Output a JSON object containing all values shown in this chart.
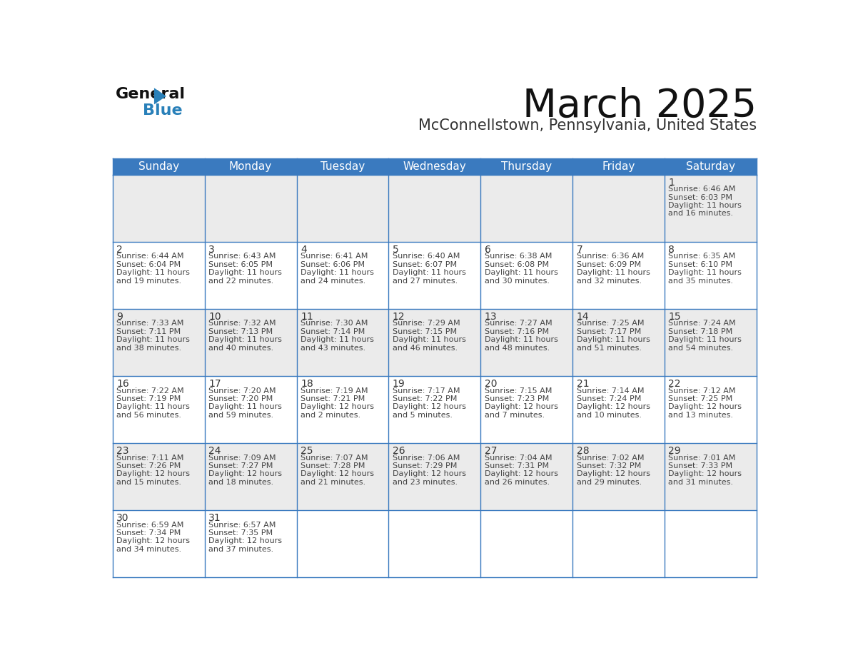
{
  "title": "March 2025",
  "subtitle": "McConnellstown, Pennsylvania, United States",
  "header_bg_color": "#3a7abf",
  "header_text_color": "#ffffff",
  "row_divider_color": "#3a7abf",
  "cell_bg_even": "#ebebeb",
  "cell_bg_odd": "#ffffff",
  "grid_line_color": "#3a7abf",
  "outer_border_color": "#3a7abf",
  "day_headers": [
    "Sunday",
    "Monday",
    "Tuesday",
    "Wednesday",
    "Thursday",
    "Friday",
    "Saturday"
  ],
  "days": [
    {
      "day": 1,
      "col": 6,
      "row": 0,
      "sunrise": "6:46 AM",
      "sunset": "6:03 PM",
      "daylight_h": "11",
      "daylight_m": "16"
    },
    {
      "day": 2,
      "col": 0,
      "row": 1,
      "sunrise": "6:44 AM",
      "sunset": "6:04 PM",
      "daylight_h": "11",
      "daylight_m": "19"
    },
    {
      "day": 3,
      "col": 1,
      "row": 1,
      "sunrise": "6:43 AM",
      "sunset": "6:05 PM",
      "daylight_h": "11",
      "daylight_m": "22"
    },
    {
      "day": 4,
      "col": 2,
      "row": 1,
      "sunrise": "6:41 AM",
      "sunset": "6:06 PM",
      "daylight_h": "11",
      "daylight_m": "24"
    },
    {
      "day": 5,
      "col": 3,
      "row": 1,
      "sunrise": "6:40 AM",
      "sunset": "6:07 PM",
      "daylight_h": "11",
      "daylight_m": "27"
    },
    {
      "day": 6,
      "col": 4,
      "row": 1,
      "sunrise": "6:38 AM",
      "sunset": "6:08 PM",
      "daylight_h": "11",
      "daylight_m": "30"
    },
    {
      "day": 7,
      "col": 5,
      "row": 1,
      "sunrise": "6:36 AM",
      "sunset": "6:09 PM",
      "daylight_h": "11",
      "daylight_m": "32"
    },
    {
      "day": 8,
      "col": 6,
      "row": 1,
      "sunrise": "6:35 AM",
      "sunset": "6:10 PM",
      "daylight_h": "11",
      "daylight_m": "35"
    },
    {
      "day": 9,
      "col": 0,
      "row": 2,
      "sunrise": "7:33 AM",
      "sunset": "7:11 PM",
      "daylight_h": "11",
      "daylight_m": "38"
    },
    {
      "day": 10,
      "col": 1,
      "row": 2,
      "sunrise": "7:32 AM",
      "sunset": "7:13 PM",
      "daylight_h": "11",
      "daylight_m": "40"
    },
    {
      "day": 11,
      "col": 2,
      "row": 2,
      "sunrise": "7:30 AM",
      "sunset": "7:14 PM",
      "daylight_h": "11",
      "daylight_m": "43"
    },
    {
      "day": 12,
      "col": 3,
      "row": 2,
      "sunrise": "7:29 AM",
      "sunset": "7:15 PM",
      "daylight_h": "11",
      "daylight_m": "46"
    },
    {
      "day": 13,
      "col": 4,
      "row": 2,
      "sunrise": "7:27 AM",
      "sunset": "7:16 PM",
      "daylight_h": "11",
      "daylight_m": "48"
    },
    {
      "day": 14,
      "col": 5,
      "row": 2,
      "sunrise": "7:25 AM",
      "sunset": "7:17 PM",
      "daylight_h": "11",
      "daylight_m": "51"
    },
    {
      "day": 15,
      "col": 6,
      "row": 2,
      "sunrise": "7:24 AM",
      "sunset": "7:18 PM",
      "daylight_h": "11",
      "daylight_m": "54"
    },
    {
      "day": 16,
      "col": 0,
      "row": 3,
      "sunrise": "7:22 AM",
      "sunset": "7:19 PM",
      "daylight_h": "11",
      "daylight_m": "56"
    },
    {
      "day": 17,
      "col": 1,
      "row": 3,
      "sunrise": "7:20 AM",
      "sunset": "7:20 PM",
      "daylight_h": "11",
      "daylight_m": "59"
    },
    {
      "day": 18,
      "col": 2,
      "row": 3,
      "sunrise": "7:19 AM",
      "sunset": "7:21 PM",
      "daylight_h": "12",
      "daylight_m": "2"
    },
    {
      "day": 19,
      "col": 3,
      "row": 3,
      "sunrise": "7:17 AM",
      "sunset": "7:22 PM",
      "daylight_h": "12",
      "daylight_m": "5"
    },
    {
      "day": 20,
      "col": 4,
      "row": 3,
      "sunrise": "7:15 AM",
      "sunset": "7:23 PM",
      "daylight_h": "12",
      "daylight_m": "7"
    },
    {
      "day": 21,
      "col": 5,
      "row": 3,
      "sunrise": "7:14 AM",
      "sunset": "7:24 PM",
      "daylight_h": "12",
      "daylight_m": "10"
    },
    {
      "day": 22,
      "col": 6,
      "row": 3,
      "sunrise": "7:12 AM",
      "sunset": "7:25 PM",
      "daylight_h": "12",
      "daylight_m": "13"
    },
    {
      "day": 23,
      "col": 0,
      "row": 4,
      "sunrise": "7:11 AM",
      "sunset": "7:26 PM",
      "daylight_h": "12",
      "daylight_m": "15"
    },
    {
      "day": 24,
      "col": 1,
      "row": 4,
      "sunrise": "7:09 AM",
      "sunset": "7:27 PM",
      "daylight_h": "12",
      "daylight_m": "18"
    },
    {
      "day": 25,
      "col": 2,
      "row": 4,
      "sunrise": "7:07 AM",
      "sunset": "7:28 PM",
      "daylight_h": "12",
      "daylight_m": "21"
    },
    {
      "day": 26,
      "col": 3,
      "row": 4,
      "sunrise": "7:06 AM",
      "sunset": "7:29 PM",
      "daylight_h": "12",
      "daylight_m": "23"
    },
    {
      "day": 27,
      "col": 4,
      "row": 4,
      "sunrise": "7:04 AM",
      "sunset": "7:31 PM",
      "daylight_h": "12",
      "daylight_m": "26"
    },
    {
      "day": 28,
      "col": 5,
      "row": 4,
      "sunrise": "7:02 AM",
      "sunset": "7:32 PM",
      "daylight_h": "12",
      "daylight_m": "29"
    },
    {
      "day": 29,
      "col": 6,
      "row": 4,
      "sunrise": "7:01 AM",
      "sunset": "7:33 PM",
      "daylight_h": "12",
      "daylight_m": "31"
    },
    {
      "day": 30,
      "col": 0,
      "row": 5,
      "sunrise": "6:59 AM",
      "sunset": "7:34 PM",
      "daylight_h": "12",
      "daylight_m": "34"
    },
    {
      "day": 31,
      "col": 1,
      "row": 5,
      "sunrise": "6:57 AM",
      "sunset": "7:35 PM",
      "daylight_h": "12",
      "daylight_m": "37"
    }
  ],
  "num_rows": 6,
  "num_cols": 7,
  "logo_color": "#2980b9",
  "logo_triangle_color": "#2980b9",
  "text_color": "#444444",
  "daynum_color": "#333333"
}
